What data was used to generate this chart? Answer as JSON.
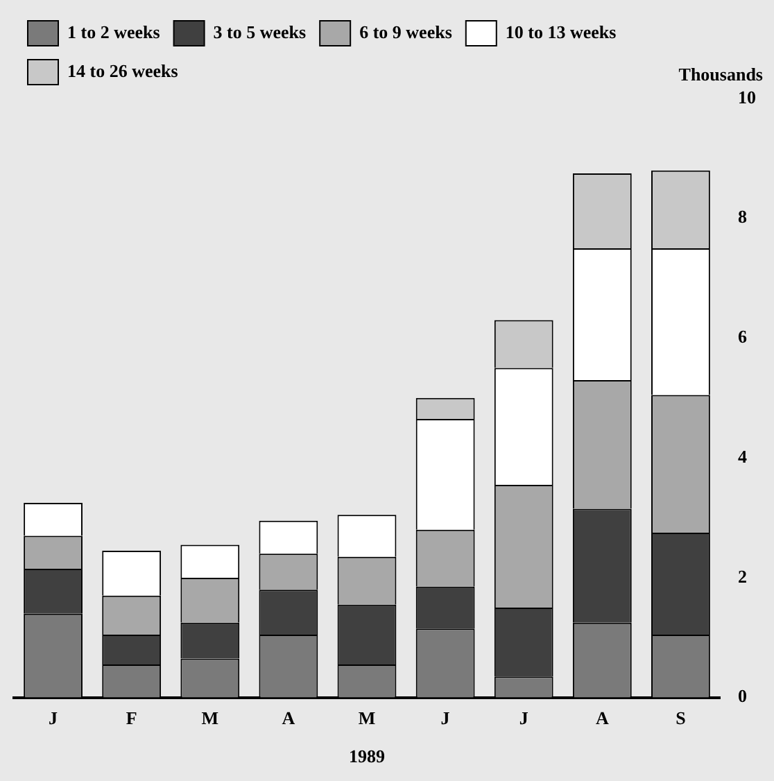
{
  "chart_data": {
    "type": "bar",
    "stacked": true,
    "xlabel": "1989",
    "ylabel": "Thousands",
    "categories": [
      "J",
      "F",
      "M",
      "A",
      "M",
      "J",
      "J",
      "A",
      "S"
    ],
    "series": [
      {
        "name": "1 to 2 weeks",
        "color": "#7a7a7a",
        "values": [
          1.4,
          0.55,
          0.65,
          1.05,
          0.55,
          1.15,
          0.35,
          1.25,
          1.05
        ]
      },
      {
        "name": "3 to 5 weeks",
        "color": "#404040",
        "values": [
          0.75,
          0.5,
          0.6,
          0.75,
          1.0,
          0.7,
          1.15,
          1.9,
          1.7
        ]
      },
      {
        "name": "6 to 9 weeks",
        "color": "#a8a8a8",
        "values": [
          0.55,
          0.65,
          0.75,
          0.6,
          0.8,
          0.95,
          2.05,
          2.15,
          2.3
        ]
      },
      {
        "name": "10 to 13 weeks",
        "color": "#ffffff",
        "values": [
          0.55,
          0.75,
          0.55,
          0.55,
          0.7,
          1.85,
          1.95,
          2.2,
          2.45
        ]
      },
      {
        "name": "14 to 26 weeks",
        "color": "#c8c8c8",
        "values": [
          null,
          null,
          null,
          null,
          null,
          0.35,
          0.8,
          1.25,
          1.3
        ]
      }
    ],
    "ylim": [
      0,
      10
    ],
    "yticks": [
      0,
      2,
      4,
      6,
      8,
      10
    ],
    "grid": false,
    "legend": "top left"
  }
}
